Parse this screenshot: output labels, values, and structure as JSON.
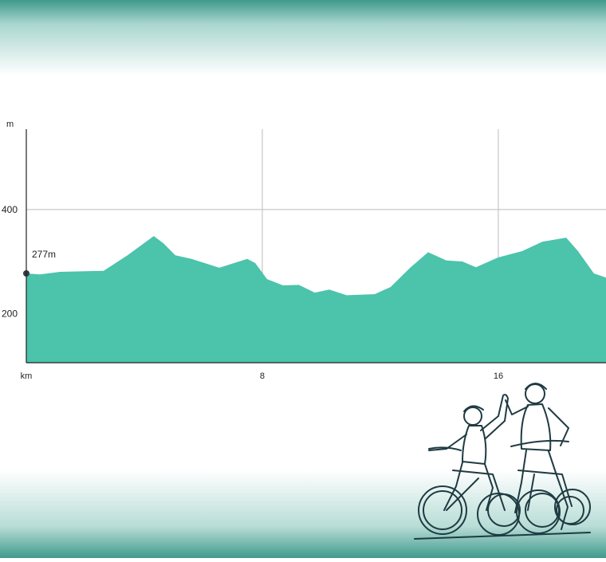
{
  "chart_data": {
    "type": "area",
    "ylabel": "m",
    "color": "#4cc3ab",
    "marker_color": "#333d47",
    "grid": true,
    "xlim": [
      0,
      19.65
    ],
    "ylim": [
      105,
      555
    ],
    "xticks": [
      {
        "value": 0,
        "label": "km"
      },
      8,
      16
    ],
    "yticks": [
      200,
      400
    ],
    "x": [
      0,
      0.46,
      1.14,
      2.62,
      3.43,
      4.32,
      4.65,
      5.05,
      5.6,
      6.54,
      7.49,
      7.76,
      8.16,
      8.7,
      9.24,
      9.78,
      10.27,
      10.86,
      11.81,
      12.35,
      13.03,
      13.62,
      14.24,
      14.78,
      15.24,
      16.0,
      16.81,
      17.49,
      18.3,
      18.7,
      19.24,
      19.65
    ],
    "values": [
      277,
      275,
      280,
      282,
      312,
      349,
      335,
      312,
      305,
      288,
      305,
      297,
      266,
      254,
      255,
      240,
      246,
      235,
      237,
      251,
      289,
      318,
      302,
      300,
      289,
      308,
      320,
      338,
      346,
      320,
      277,
      269
    ],
    "value_labels": [
      "277m",
      null,
      null,
      null,
      null,
      null,
      null,
      null,
      null,
      null,
      null,
      null,
      null,
      null,
      null,
      null,
      null,
      null,
      null,
      null,
      null,
      null,
      null,
      null,
      null,
      null,
      null,
      null,
      null,
      null,
      null,
      null
    ]
  }
}
